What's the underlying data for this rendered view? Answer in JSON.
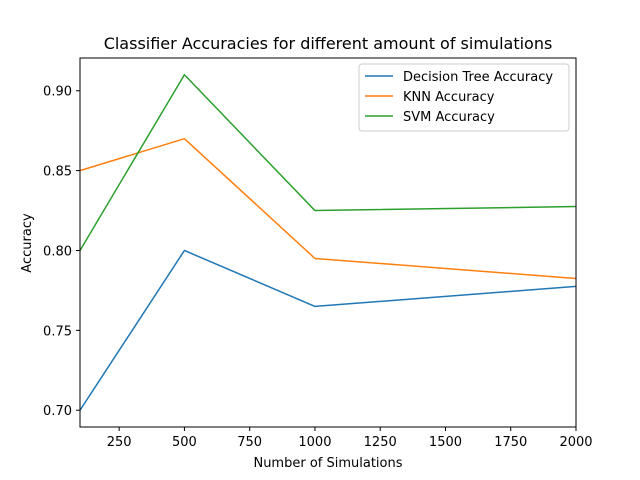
{
  "chart_data": {
    "type": "line",
    "title": "Classifier Accuracies for different amount of simulations",
    "xlabel": "Number of Simulations",
    "ylabel": "Accuracy",
    "x": [
      100,
      500,
      1000,
      2000
    ],
    "xlim": [
      100,
      2000
    ],
    "ylim": [
      0.6895,
      0.9205
    ],
    "xticks": [
      250,
      500,
      750,
      1000,
      1250,
      1500,
      1750,
      2000
    ],
    "yticks": [
      0.7,
      0.75,
      0.8,
      0.85,
      0.9
    ],
    "xtick_labels": [
      "250",
      "500",
      "750",
      "1000",
      "1250",
      "1500",
      "1750",
      "2000"
    ],
    "ytick_labels": [
      "0.70",
      "0.75",
      "0.80",
      "0.85",
      "0.90"
    ],
    "grid": false,
    "legend_position": "top-right",
    "series": [
      {
        "name": "Decision Tree Accuracy",
        "color": "#1f77b4",
        "values": [
          0.7,
          0.8,
          0.765,
          0.7775
        ]
      },
      {
        "name": "KNN Accuracy",
        "color": "#ff7f0e",
        "values": [
          0.85,
          0.87,
          0.795,
          0.7825
        ]
      },
      {
        "name": "SVM Accuracy",
        "color": "#2ca02c",
        "values": [
          0.8,
          0.91,
          0.825,
          0.8275
        ]
      }
    ]
  }
}
